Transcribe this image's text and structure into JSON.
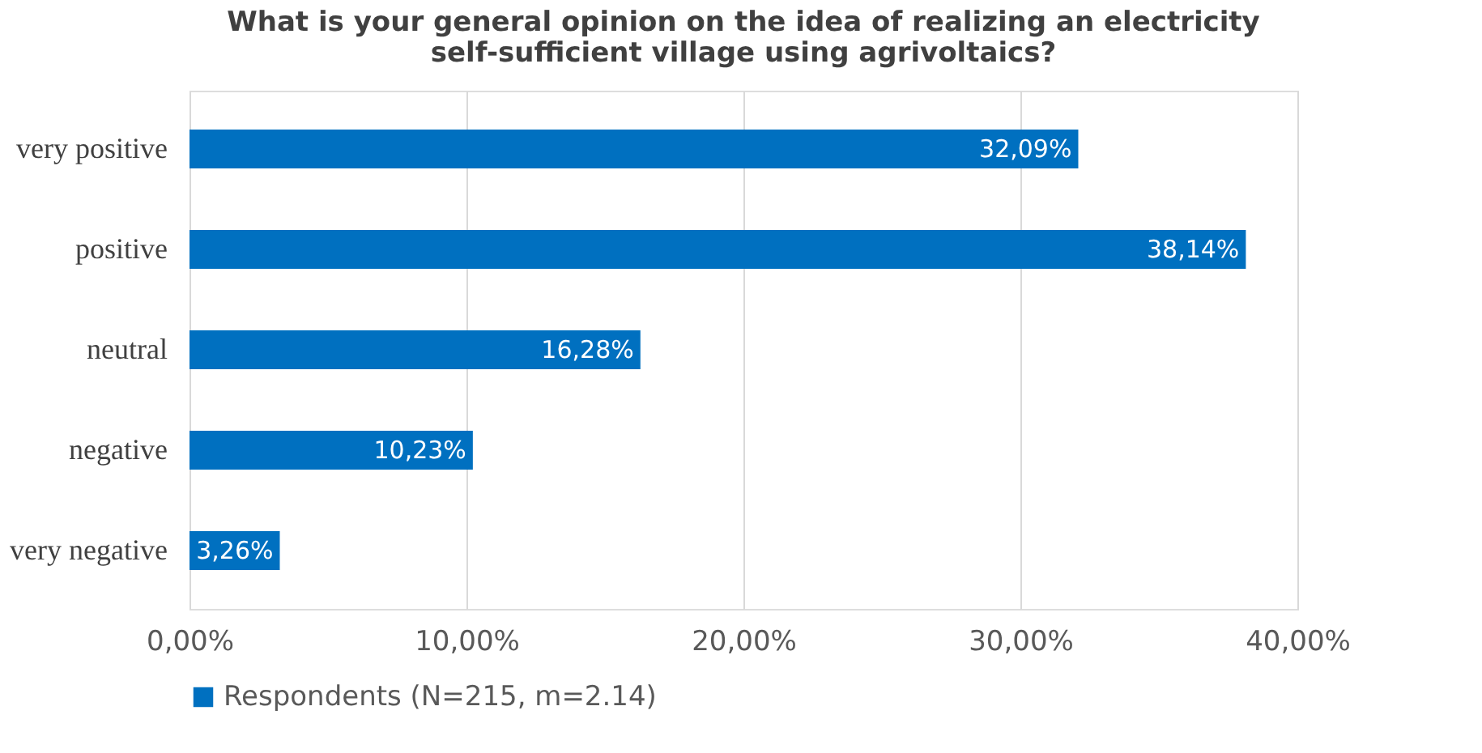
{
  "chart_data": {
    "type": "bar",
    "orientation": "horizontal",
    "title": "What is your general opinion on the idea of realizing an electricity\nself-sufficient  village using agrivoltaics?",
    "categories": [
      "very positive",
      "positive",
      "neutral",
      "negative",
      "very negative"
    ],
    "series": [
      {
        "name": "Respondents (N=215, m=2.14)",
        "color": "#0070c0",
        "values": [
          32.09,
          38.14,
          16.28,
          10.23,
          3.26
        ],
        "value_labels": [
          "32,09%",
          "38,14%",
          "16,28%",
          "10,23%",
          "3,26%"
        ]
      }
    ],
    "xlim": [
      0,
      40
    ],
    "xticks": [
      {
        "value": 0,
        "label": "0,00%"
      },
      {
        "value": 10,
        "label": "10,00%"
      },
      {
        "value": 20,
        "label": "20,00%"
      },
      {
        "value": 30,
        "label": "30,00%"
      },
      {
        "value": 40,
        "label": "40,00%"
      }
    ],
    "grid": "x",
    "legend": "bottom"
  }
}
